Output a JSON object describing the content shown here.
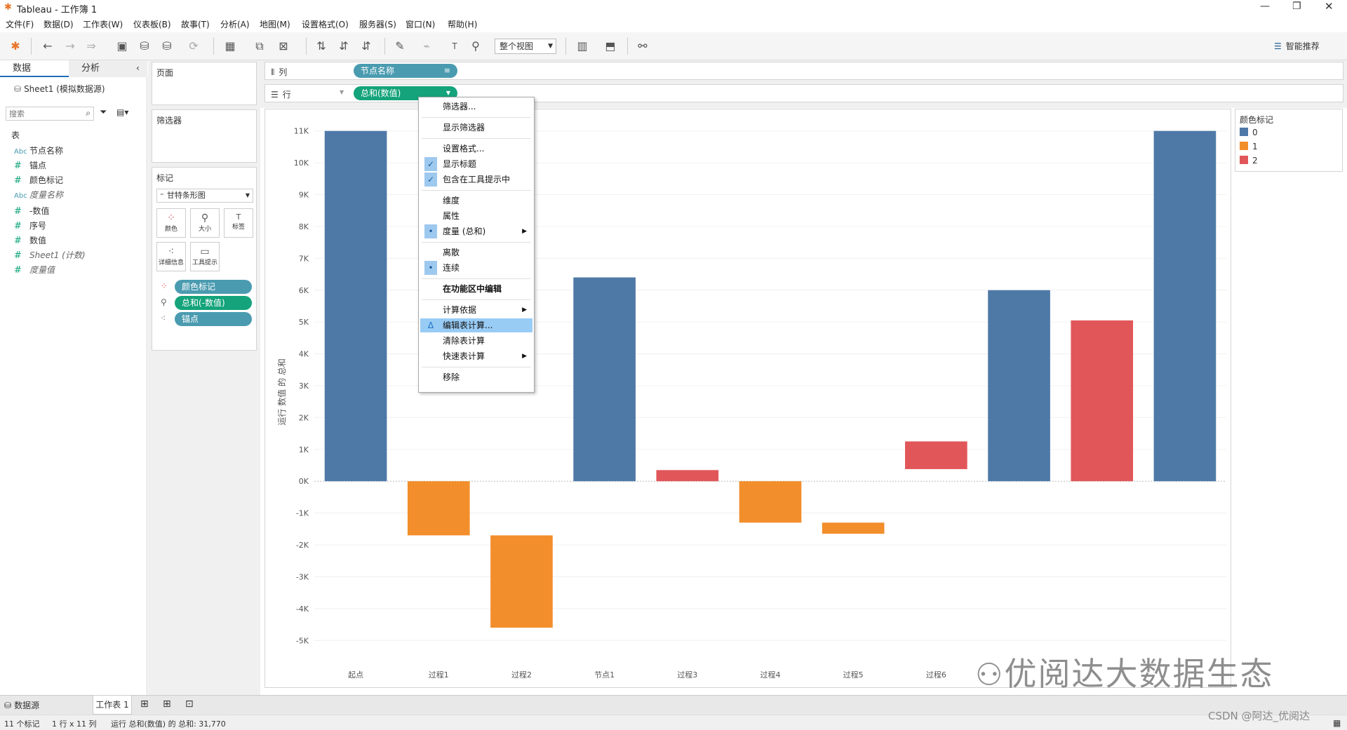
{
  "window": {
    "title": "Tableau - 工作簿 1"
  },
  "menu": [
    "文件(F)",
    "数据(D)",
    "工作表(W)",
    "仪表板(B)",
    "故事(T)",
    "分析(A)",
    "地图(M)",
    "设置格式(O)",
    "服务器(S)",
    "窗口(N)",
    "帮助(H)"
  ],
  "toolbar": {
    "fit_select": "整个视图",
    "show_me": "智能推荐"
  },
  "left": {
    "tab_data": "数据",
    "tab_analysis": "分析",
    "datasource": "Sheet1 (模拟数据源)",
    "search_placeholder": "搜索",
    "section_title": "表",
    "fields": [
      {
        "icon": "Abc",
        "name": "节点名称",
        "italic": false,
        "type": "dim"
      },
      {
        "icon": "#",
        "name": "锚点",
        "italic": false,
        "type": "measure"
      },
      {
        "icon": "#",
        "name": "颜色标记",
        "italic": false,
        "type": "measure"
      },
      {
        "icon": "Abc",
        "name": "度量名称",
        "italic": true,
        "type": "dim"
      },
      {
        "icon": "#",
        "name": "-数值",
        "italic": false,
        "type": "measure"
      },
      {
        "icon": "#",
        "name": "序号",
        "italic": false,
        "type": "measure"
      },
      {
        "icon": "#",
        "name": "数值",
        "italic": false,
        "type": "measure"
      },
      {
        "icon": "#",
        "name": "Sheet1 (计数)",
        "italic": true,
        "type": "measure"
      },
      {
        "icon": "#",
        "name": "度量值",
        "italic": true,
        "type": "measure"
      }
    ]
  },
  "cards": {
    "pages": "页面",
    "filters": "筛选器",
    "marks": "标记",
    "mark_type": "甘特条形图",
    "mark_buttons": [
      "颜色",
      "大小",
      "标签",
      "详细信息",
      "工具提示"
    ],
    "mark_pills": [
      "颜色标记",
      "总和(-数值)",
      "锚点"
    ]
  },
  "shelves": {
    "columns_label": "列",
    "rows_label": "行",
    "columns_pill": "节点名称",
    "rows_pill": "总和(数值)"
  },
  "context_menu": [
    {
      "label": "筛选器...",
      "mark": ""
    },
    {
      "sep": true
    },
    {
      "label": "显示筛选器",
      "mark": ""
    },
    {
      "sep": true
    },
    {
      "label": "设置格式...",
      "mark": ""
    },
    {
      "label": "显示标题",
      "mark": "✓"
    },
    {
      "label": "包含在工具提示中",
      "mark": "✓"
    },
    {
      "sep": true
    },
    {
      "label": "维度",
      "mark": ""
    },
    {
      "label": "属性",
      "mark": ""
    },
    {
      "label": "度量 (总和)",
      "mark": "•",
      "submenu": true
    },
    {
      "sep": true
    },
    {
      "label": "离散",
      "mark": ""
    },
    {
      "label": "连续",
      "mark": "•"
    },
    {
      "sep": true
    },
    {
      "label": "在功能区中编辑",
      "mark": "",
      "bold": true
    },
    {
      "sep": true
    },
    {
      "label": "计算依据",
      "mark": "",
      "submenu": true
    },
    {
      "label": "编辑表计算...",
      "mark": "Δ",
      "selected": true
    },
    {
      "label": "清除表计算",
      "mark": ""
    },
    {
      "label": "快速表计算",
      "mark": "",
      "submenu": true
    },
    {
      "sep": true
    },
    {
      "label": "移除",
      "mark": ""
    }
  ],
  "legend": {
    "title": "颜色标记",
    "items": [
      {
        "label": "0",
        "color": "#4e79a7"
      },
      {
        "label": "1",
        "color": "#f28e2b"
      },
      {
        "label": "2",
        "color": "#e15759"
      }
    ]
  },
  "chart_data": {
    "type": "bar",
    "subtype": "waterfall-gantt",
    "categories": [
      "起点",
      "过程1",
      "过程2",
      "节点1",
      "过程3",
      "过程4",
      "过程5",
      "过程6",
      "",
      "",
      ""
    ],
    "bars": [
      {
        "start": 0,
        "end": 11000,
        "color_mark": 0
      },
      {
        "start": 0,
        "end": -1700,
        "color_mark": 1
      },
      {
        "start": -1700,
        "end": -4600,
        "color_mark": 1
      },
      {
        "start": 0,
        "end": 6400,
        "color_mark": 0
      },
      {
        "start": 0,
        "end": 350,
        "color_mark": 2
      },
      {
        "start": 0,
        "end": -1300,
        "color_mark": 1
      },
      {
        "start": -1300,
        "end": -1650,
        "color_mark": 1
      },
      {
        "start": 380,
        "end": 1250,
        "color_mark": 2
      },
      {
        "start": 0,
        "end": 6000,
        "color_mark": 0
      },
      {
        "start": 0,
        "end": 5050,
        "color_mark": 2
      },
      {
        "start": 0,
        "end": 11000,
        "color_mark": 0
      }
    ],
    "ylabel": "运行 数值 的 总和",
    "ylim": [
      -5500,
      11500
    ],
    "yticks": [
      "11K",
      "10K",
      "9K",
      "8K",
      "7K",
      "6K",
      "5K",
      "4K",
      "3K",
      "2K",
      "1K",
      "0K",
      "-1K",
      "-2K",
      "-3K",
      "-4K",
      "-5K"
    ],
    "ytick_values": [
      11000,
      10000,
      9000,
      8000,
      7000,
      6000,
      5000,
      4000,
      3000,
      2000,
      1000,
      0,
      -1000,
      -2000,
      -3000,
      -4000,
      -5000
    ],
    "grid": true
  },
  "tabs": {
    "datasource": "数据源",
    "sheet": "工作表 1"
  },
  "status": {
    "marks": "11 个标记",
    "dims": "1 行 x 11 列",
    "sum": "运行 总和(数值) 的 总和: 31,770"
  },
  "watermark": "优阅达大数据生态",
  "credit": "CSDN @阿达_优阅达"
}
